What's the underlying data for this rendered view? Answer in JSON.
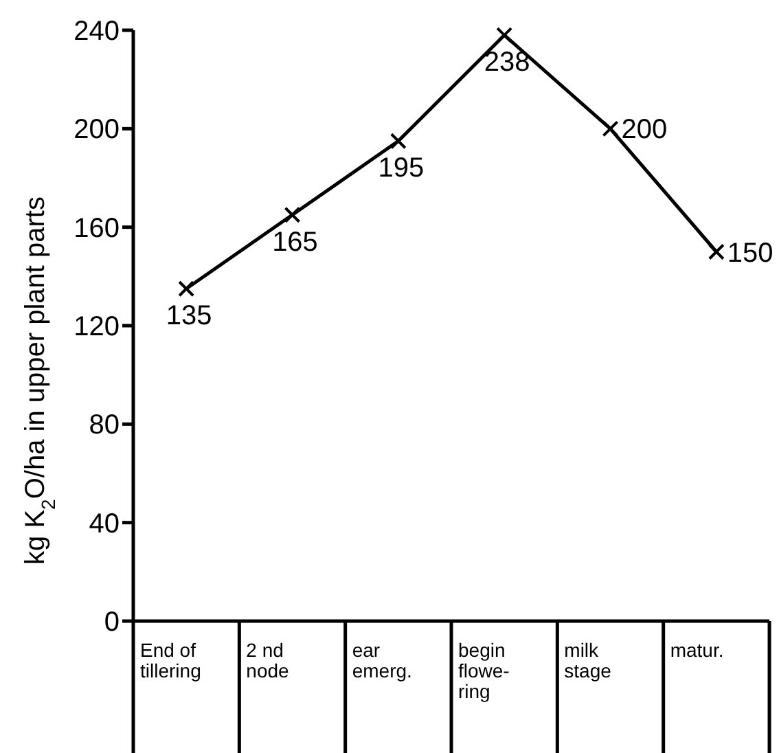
{
  "chart_data": {
    "type": "line",
    "ylabel": "kg K$_{2}$O/ha in upper plant parts",
    "categories": [
      "End of\ntillering",
      "2 nd\nnode",
      "ear\nemerg.",
      "begin\nflowe-\nring",
      "milk\nstage",
      "matur."
    ],
    "series": [
      {
        "color": "#000000",
        "values": [
          135,
          165,
          195,
          238,
          200,
          150
        ]
      }
    ],
    "ylim": [
      0,
      240
    ],
    "yticks": [
      0,
      40,
      80,
      120,
      160,
      200,
      240
    ],
    "data_labels": true,
    "marker": "cross",
    "line_style": "solid",
    "grid": false
  }
}
